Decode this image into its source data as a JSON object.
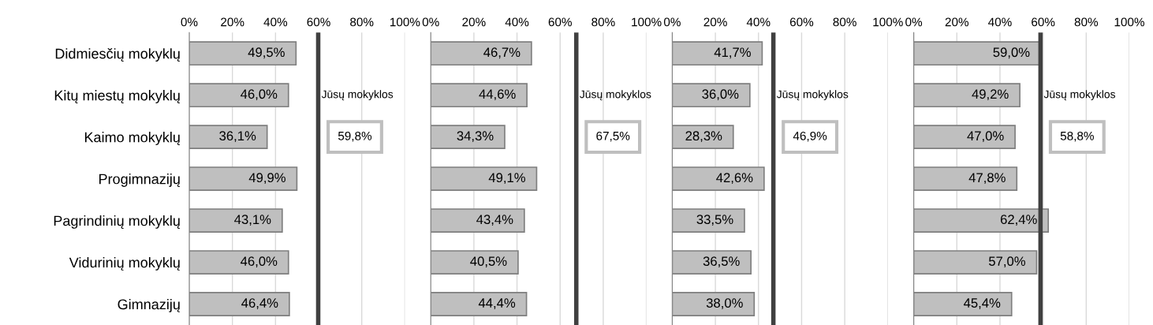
{
  "chart_data": [
    {
      "type": "bar",
      "orientation": "horizontal",
      "categories": [
        "Didmiesčių mokyklų",
        "Kitų miestų mokyklų",
        "Kaimo mokyklų",
        "Progimnazijų",
        "Pagrindinių mokyklų",
        "Vidurinių mokyklų",
        "Gimnazijų"
      ],
      "values": [
        49.5,
        46.0,
        36.1,
        49.9,
        43.1,
        46.0,
        46.4
      ],
      "value_labels": [
        "49,5%",
        "46,0%",
        "36,1%",
        "49,9%",
        "43,1%",
        "46,0%",
        "46,4%"
      ],
      "color": "#bfbfbf",
      "xlim": [
        0,
        100
      ],
      "xticks": [
        {
          "value": 0,
          "label": "0%"
        },
        {
          "value": 20,
          "label": "20%"
        },
        {
          "value": 40,
          "label": "40%"
        },
        {
          "value": 60,
          "label": "60%"
        },
        {
          "value": 80,
          "label": "80%"
        },
        {
          "value": 100,
          "label": "100%"
        }
      ],
      "grid": "x",
      "ref_lines": [
        {
          "axis": "x",
          "value": 59.8,
          "label": "Jūsų mokyklos",
          "color": "#404040"
        }
      ],
      "annotations": [
        "59,8%"
      ]
    },
    {
      "type": "bar",
      "orientation": "horizontal",
      "values": [
        46.7,
        44.6,
        34.3,
        49.1,
        43.4,
        40.5,
        44.4
      ],
      "value_labels": [
        "46,7%",
        "44,6%",
        "34,3%",
        "49,1%",
        "43,4%",
        "40,5%",
        "44,4%"
      ],
      "color": "#bfbfbf",
      "xlim": [
        0,
        100
      ],
      "xticks": [
        {
          "value": 0,
          "label": "0%"
        },
        {
          "value": 20,
          "label": "20%"
        },
        {
          "value": 40,
          "label": "40%"
        },
        {
          "value": 60,
          "label": "60%"
        },
        {
          "value": 80,
          "label": "80%"
        },
        {
          "value": 100,
          "label": "100%"
        }
      ],
      "grid": "x",
      "tick_labels": "x",
      "ref_lines": [
        {
          "axis": "x",
          "value": 67.5,
          "label": "Jūsų mokyklos",
          "color": "#404040"
        }
      ],
      "annotations": [
        "67,5%"
      ]
    },
    {
      "type": "bar",
      "orientation": "horizontal",
      "values": [
        41.7,
        36.0,
        28.3,
        42.6,
        33.5,
        36.5,
        38.0
      ],
      "value_labels": [
        "41,7%",
        "36,0%",
        "28,3%",
        "42,6%",
        "33,5%",
        "36,5%",
        "38,0%"
      ],
      "color": "#bfbfbf",
      "xlim": [
        0,
        100
      ],
      "xticks": [
        {
          "value": 0,
          "label": "0%"
        },
        {
          "value": 20,
          "label": "20%"
        },
        {
          "value": 40,
          "label": "40%"
        },
        {
          "value": 60,
          "label": "60%"
        },
        {
          "value": 80,
          "label": "80%"
        },
        {
          "value": 100,
          "label": "100%"
        }
      ],
      "grid": "x",
      "tick_labels": "x",
      "ref_lines": [
        {
          "axis": "x",
          "value": 46.9,
          "label": "Jūsų mokyklos",
          "color": "#404040"
        }
      ],
      "annotations": [
        "46,9%"
      ]
    },
    {
      "type": "bar",
      "orientation": "horizontal",
      "values": [
        59.0,
        49.2,
        47.0,
        47.8,
        62.4,
        57.0,
        45.4
      ],
      "value_labels": [
        "59,0%",
        "49,2%",
        "47,0%",
        "47,8%",
        "62,4%",
        "57,0%",
        "45,4%"
      ],
      "color": "#bfbfbf",
      "xlim": [
        0,
        100
      ],
      "xticks": [
        {
          "value": 0,
          "label": "0%"
        },
        {
          "value": 20,
          "label": "20%"
        },
        {
          "value": 40,
          "label": "40%"
        },
        {
          "value": 60,
          "label": "60%"
        },
        {
          "value": 80,
          "label": "80%"
        },
        {
          "value": 100,
          "label": "100%"
        }
      ],
      "grid": "x",
      "tick_labels": "x",
      "ref_lines": [
        {
          "axis": "x",
          "value": 58.8,
          "label": "Jūsų mokyklos",
          "color": "#404040"
        }
      ],
      "annotations": [
        "58,8%"
      ]
    }
  ]
}
